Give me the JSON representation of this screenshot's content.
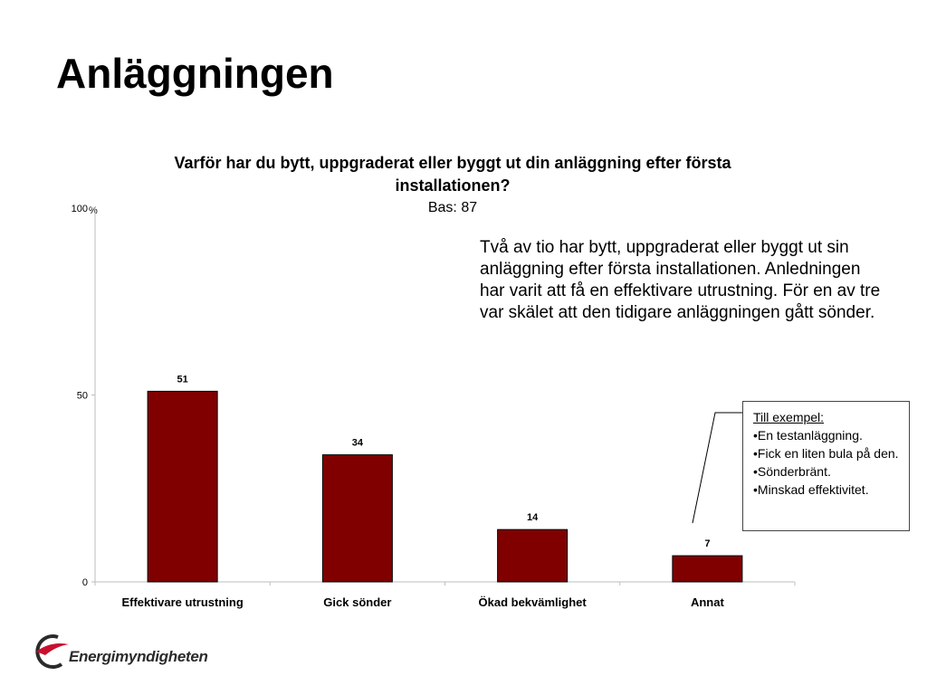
{
  "slide": {
    "title": "Anläggningen"
  },
  "chart_data": {
    "type": "bar",
    "title": "Varför har du bytt, uppgraderat eller byggt ut din anläggning efter första installationen?",
    "subtitle": "Bas: 87",
    "ylabel": "%",
    "categories": [
      "Effektivare utrustning",
      "Gick sönder",
      "Ökad bekvämlighet",
      "Annat"
    ],
    "values": [
      51,
      34,
      14,
      7
    ],
    "ylim": [
      0,
      100
    ],
    "yticks": [
      0,
      50,
      100
    ],
    "bar_color": "#800000",
    "grid": false,
    "data_labels": true
  },
  "note": {
    "text": "Två av tio har bytt, uppgraderat eller byggt ut sin anläggning efter första installationen. Anledningen har varit att få en effektivare utrustning. För en av tre var skälet att den tidigare anläggningen gått sönder."
  },
  "callout": {
    "heading": "Till exempel:",
    "items": [
      "•En testanläggning.",
      "•Fick en liten bula på den.",
      "•Sönderbränt.",
      "•Minskad effektivitet."
    ]
  },
  "logo": {
    "text": "Energimyndigheten",
    "accent_color": "#c8102e"
  }
}
